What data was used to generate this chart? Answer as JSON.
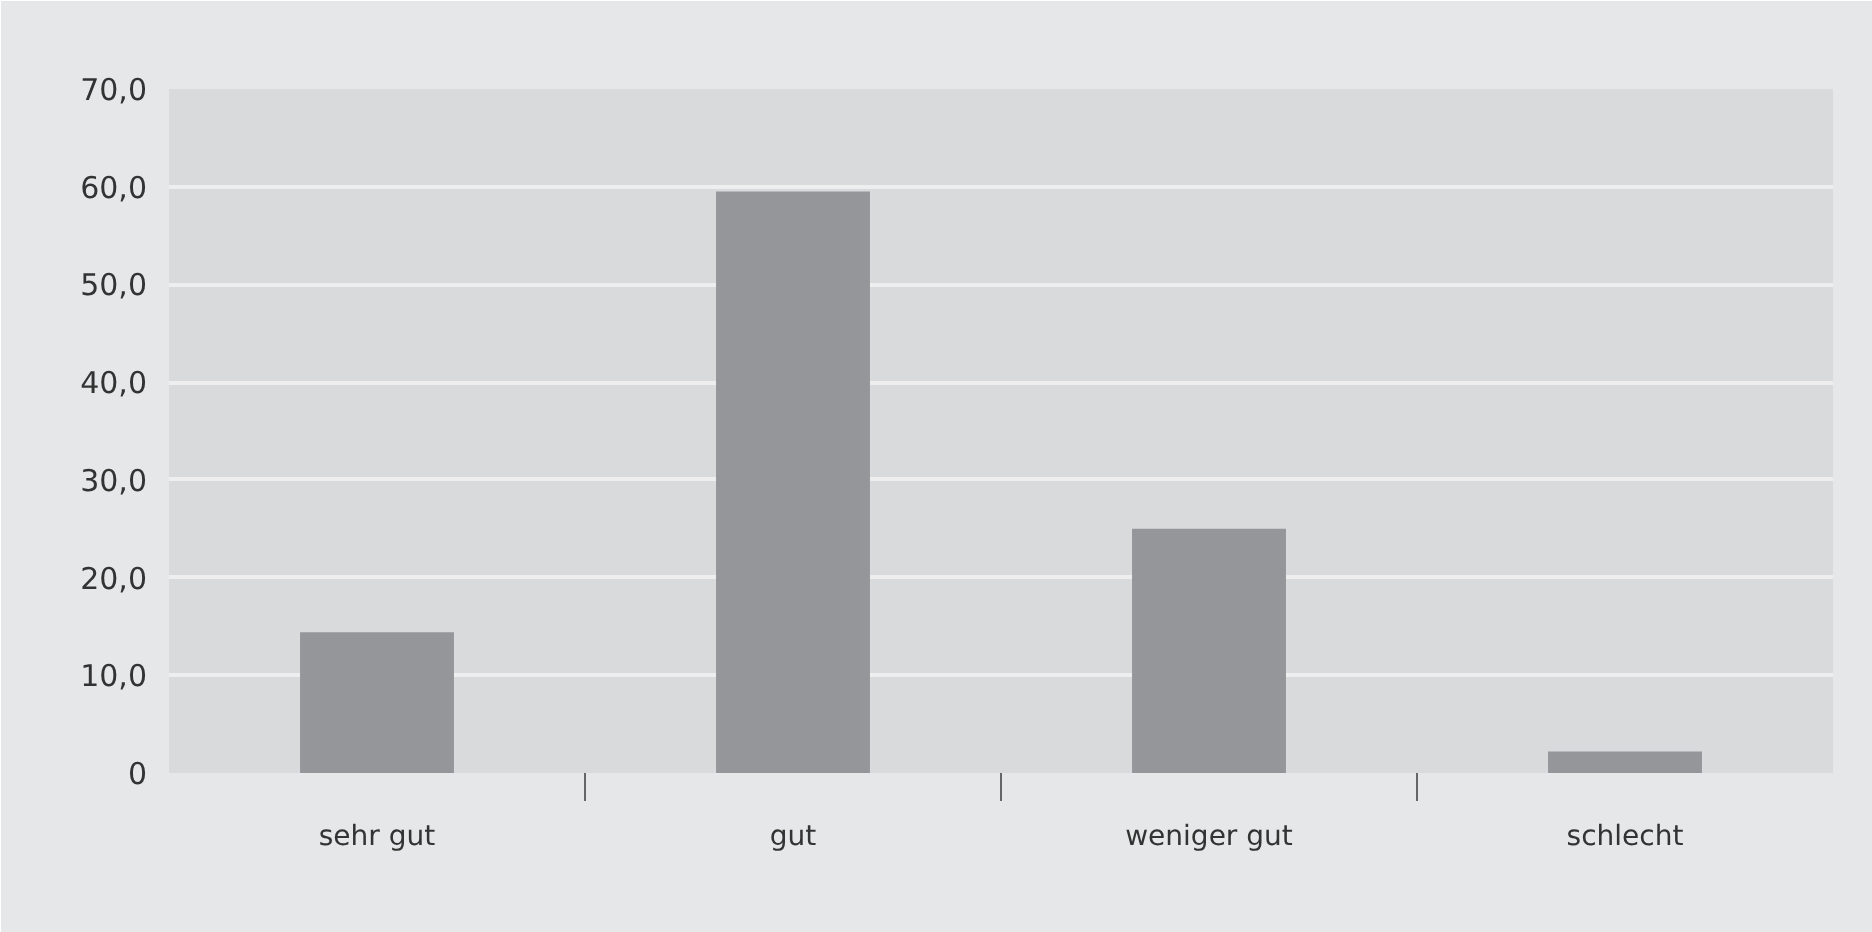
{
  "chart_data": {
    "type": "bar",
    "categories": [
      "sehr gut",
      "gut",
      "weniger gut",
      "schlecht"
    ],
    "values": [
      14.4,
      59.5,
      25.0,
      2.2
    ],
    "color": "#959699",
    "ylim": [
      0,
      70
    ],
    "yticks": [
      {
        "value": 0,
        "label": "0"
      },
      {
        "value": 10,
        "label": "10,0"
      },
      {
        "value": 20,
        "label": "20,0"
      },
      {
        "value": 30,
        "label": "30,0"
      },
      {
        "value": 40,
        "label": "40,0"
      },
      {
        "value": 50,
        "label": "50,0"
      },
      {
        "value": 60,
        "label": "60,0"
      },
      {
        "value": 70,
        "label": "70,0"
      }
    ],
    "grid": "y"
  }
}
